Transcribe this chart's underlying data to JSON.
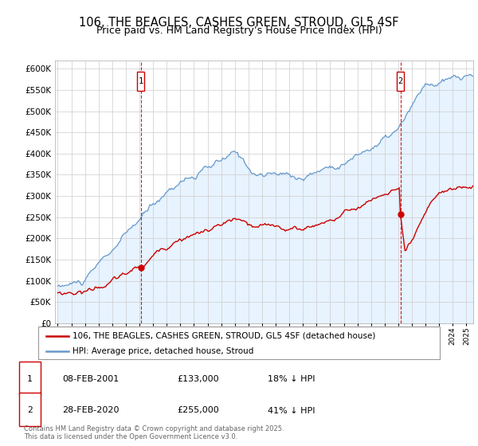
{
  "title": "106, THE BEAGLES, CASHES GREEN, STROUD, GL5 4SF",
  "subtitle": "Price paid vs. HM Land Registry’s House Price Index (HPI)",
  "legend_property": "106, THE BEAGLES, CASHES GREEN, STROUD, GL5 4SF (detached house)",
  "legend_hpi": "HPI: Average price, detached house, Stroud",
  "footer": "Contains HM Land Registry data © Crown copyright and database right 2025.\nThis data is licensed under the Open Government Licence v3.0.",
  "marker1_date": "08-FEB-2001",
  "marker1_price": "£133,000",
  "marker1_hpi": "18% ↓ HPI",
  "marker1_year": 2001.1,
  "marker1_value": 133000,
  "marker2_date": "28-FEB-2020",
  "marker2_price": "£255,000",
  "marker2_hpi": "41% ↓ HPI",
  "marker2_year": 2020.15,
  "marker2_value": 255000,
  "ylim": [
    0,
    620000
  ],
  "xlim_start": 1994.8,
  "xlim_end": 2025.5,
  "property_color": "#cc0000",
  "hpi_color": "#6699cc",
  "hpi_fill_color": "#ddeeff",
  "background_color": "#ffffff",
  "grid_color": "#cccccc",
  "title_fontsize": 10.5,
  "subtitle_fontsize": 9
}
